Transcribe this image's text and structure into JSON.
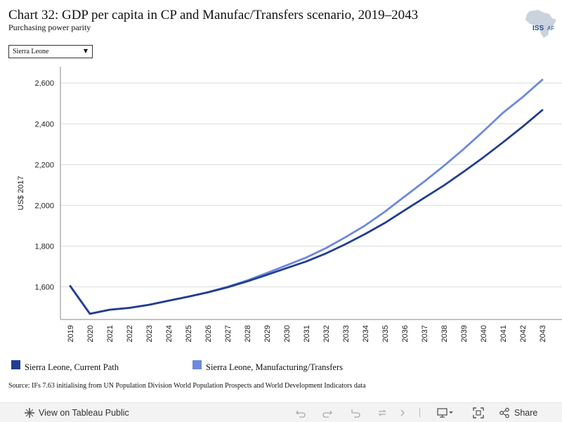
{
  "header": {
    "title": "Chart 32: GDP per capita in CP and Manufac/Transfers scenario, 2019–2043",
    "subtitle": "Purchasing power parity",
    "logo_text": "ISS",
    "logo_suffix": "AF"
  },
  "filter": {
    "selected": "Sierra Leone"
  },
  "colors": {
    "current_path": "#223d91",
    "manufacturing": "#6d89dc",
    "grid": "#dcdcdc",
    "axis": "#888888"
  },
  "chart_data": {
    "type": "line",
    "title": "Chart 32: GDP per capita in CP and Manufac/Transfers scenario, 2019–2043",
    "subtitle": "Purchasing power parity",
    "xlabel": "",
    "ylabel": "US$ 2017",
    "ylim": [
      1440,
      2680
    ],
    "yticks": [
      1600,
      1800,
      2000,
      2200,
      2400,
      2600
    ],
    "ytick_labels": [
      "1,600",
      "1,800",
      "2,000",
      "2,200",
      "2,400",
      "2,600"
    ],
    "x": [
      "2019",
      "2020",
      "2021",
      "2022",
      "2023",
      "2024",
      "2025",
      "2026",
      "2027",
      "2028",
      "2029",
      "2030",
      "2031",
      "2032",
      "2033",
      "2034",
      "2035",
      "2036",
      "2037",
      "2038",
      "2039",
      "2040",
      "2041",
      "2042",
      "2043"
    ],
    "grid": "horizontal",
    "legend_position": "bottom",
    "series": [
      {
        "name": "Sierra Leone, Current Path",
        "color": "#223d91",
        "values": [
          1604,
          1468,
          1488,
          1497,
          1512,
          1532,
          1552,
          1573,
          1598,
          1627,
          1659,
          1692,
          1725,
          1764,
          1810,
          1860,
          1914,
          1976,
          2037,
          2098,
          2165,
          2235,
          2309,
          2386,
          2467
        ]
      },
      {
        "name": "Sierra Leone, Manufacturing/Transfers",
        "color": "#6d89dc",
        "values": [
          1604,
          1468,
          1488,
          1497,
          1512,
          1532,
          1552,
          1574,
          1600,
          1632,
          1668,
          1706,
          1744,
          1790,
          1844,
          1902,
          1969,
          2043,
          2117,
          2194,
          2276,
          2363,
          2454,
          2531,
          2616
        ]
      }
    ]
  },
  "source": "Source: IFs 7.63 initialising from UN Population Division World Population Prospects and World Development Indicators data",
  "footer": {
    "view_label": "View on Tableau Public",
    "share_label": "Share"
  }
}
